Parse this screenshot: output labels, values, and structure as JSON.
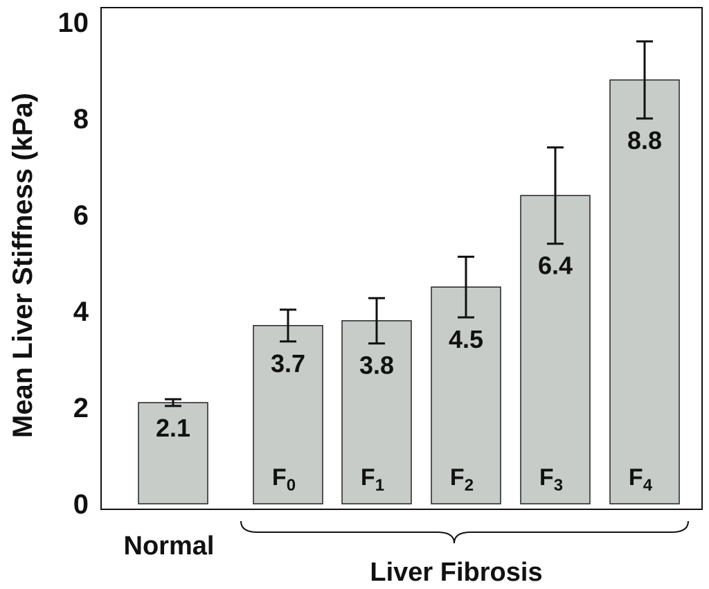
{
  "chart_data": {
    "type": "bar",
    "ylabel": "Mean Liver Stiffness (kPa)",
    "ylim": [
      0,
      10
    ],
    "yticks": [
      "0",
      "2",
      "4",
      "6",
      "8",
      "10"
    ],
    "grid": false,
    "bar_color": "#c7ccc9",
    "bars": [
      {
        "value": 2.1,
        "label": "2.1",
        "error": 0.07,
        "stage": "",
        "sub": ""
      },
      {
        "value": 3.7,
        "label": "3.7",
        "error": 0.33,
        "stage": "F",
        "sub": "0"
      },
      {
        "value": 3.8,
        "label": "3.8",
        "error": 0.47,
        "stage": "F",
        "sub": "1"
      },
      {
        "value": 4.5,
        "label": "4.5",
        "error": 0.63,
        "stage": "F",
        "sub": "2"
      },
      {
        "value": 6.4,
        "label": "6.4",
        "error": 1.0,
        "stage": "F",
        "sub": "3"
      },
      {
        "value": 8.8,
        "label": "8.8",
        "error": 0.8,
        "stage": "F",
        "sub": "4"
      }
    ],
    "groups": [
      {
        "label": "Normal"
      },
      {
        "label": "Liver Fibrosis"
      }
    ]
  }
}
